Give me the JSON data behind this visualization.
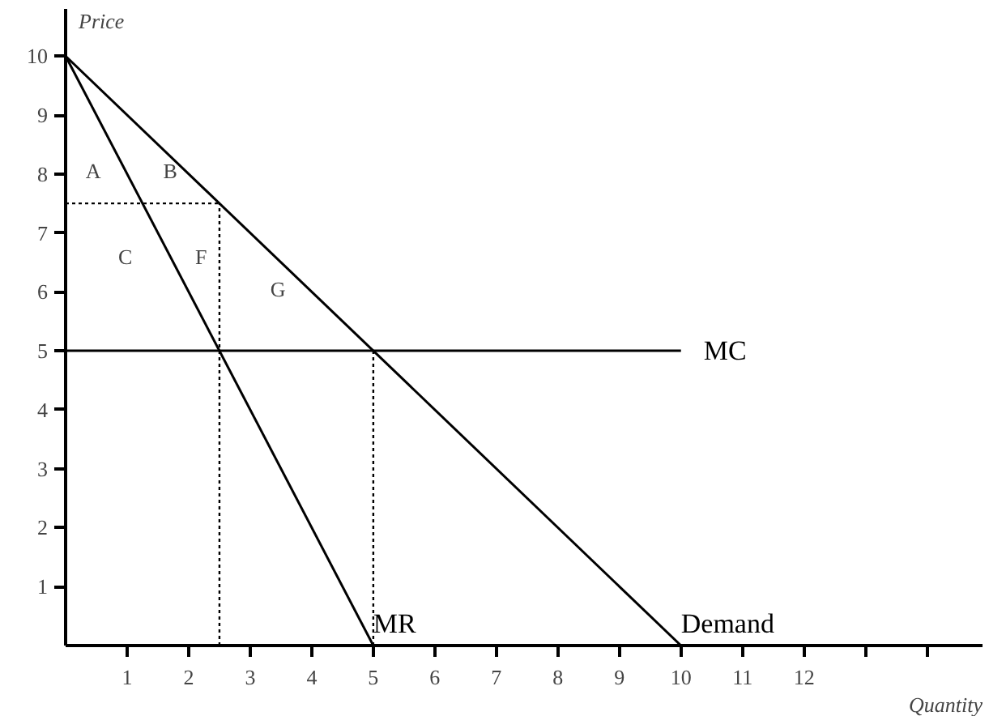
{
  "chart_data": {
    "type": "line",
    "xlabel": "Quantity",
    "ylabel": "Price",
    "xlim": [
      0,
      14.9
    ],
    "ylim": [
      0,
      10.8
    ],
    "xticks": [
      1,
      2,
      3,
      4,
      5,
      6,
      7,
      8,
      9,
      10,
      11,
      12,
      {
        "value": 13,
        "label": null
      },
      {
        "value": 14,
        "label": null
      }
    ],
    "yticks": [
      1,
      2,
      3,
      4,
      5,
      6,
      7,
      8,
      9,
      10
    ],
    "grid": false,
    "marker": "none",
    "series": [
      {
        "name": "Demand",
        "color": "#000000",
        "x": [
          0,
          10
        ],
        "values": [
          10,
          0
        ],
        "line_style": "solid"
      },
      {
        "name": "MR",
        "color": "#000000",
        "x": [
          0,
          5
        ],
        "values": [
          10,
          0
        ],
        "line_style": "solid"
      },
      {
        "name": "MC",
        "color": "#000000",
        "x": [
          0,
          10
        ],
        "values": [
          5,
          5
        ],
        "line_style": "solid"
      },
      {
        "color": "#000000",
        "x": [
          0,
          2.5
        ],
        "values": [
          7.5,
          7.5
        ],
        "line_style": "dotted"
      },
      {
        "color": "#000000",
        "x": [
          2.5,
          2.5
        ],
        "values": [
          0,
          7.5
        ],
        "line_style": "dotted"
      },
      {
        "color": "#000000",
        "x": [
          5,
          5
        ],
        "values": [
          0,
          5
        ],
        "line_style": "dotted"
      }
    ],
    "annotations": [
      "A",
      "B",
      "C",
      "F",
      "G"
    ]
  }
}
